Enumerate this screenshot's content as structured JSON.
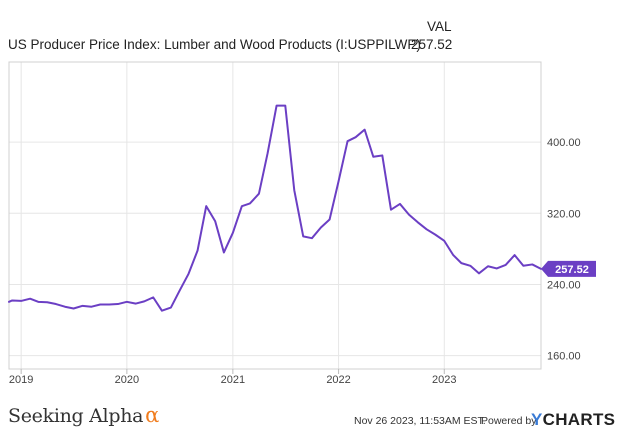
{
  "header": {
    "val_label": "VAL",
    "series_name": "US Producer Price Index: Lumber and Wood Products (I:USPPILWP)",
    "series_value": "257.52"
  },
  "footer": {
    "brand": "Seeking Alpha",
    "brand_mark": "α",
    "timestamp": "Nov 26 2023, 11:53AM EST.",
    "powered_by": "Powered by",
    "provider_y": "Y",
    "provider_rest": "CHARTS"
  },
  "colors": {
    "line": "#6b3fc4",
    "grid": "#e6e6e6",
    "axis_text": "#444444"
  },
  "chart_data": {
    "type": "line",
    "title": "",
    "xlabel": "",
    "ylabel": "",
    "ylim": [
      145,
      490
    ],
    "xlim": [
      "2018-11-20",
      "2023-12-01"
    ],
    "y_ticks": [
      160,
      240,
      320,
      400
    ],
    "y_tick_labels": [
      "160.00",
      "240.00",
      "320.00",
      "400.00"
    ],
    "x_ticks": [
      "2019-01-01",
      "2020-01-01",
      "2021-01-01",
      "2022-01-01",
      "2023-01-01"
    ],
    "x_tick_labels": [
      "2019",
      "2020",
      "2021",
      "2022",
      "2023"
    ],
    "last_value_label": "257.52",
    "grid": true,
    "legend_placement": "top",
    "series": [
      {
        "name": "US Producer Price Index: Lumber and Wood Products (I:USPPILWP)",
        "points": [
          [
            "2018-11-01",
            220.5
          ],
          [
            "2018-12-01",
            222.0
          ],
          [
            "2019-01-01",
            221.5
          ],
          [
            "2019-02-01",
            224.0
          ],
          [
            "2019-03-01",
            220.5
          ],
          [
            "2019-04-01",
            220.0
          ],
          [
            "2019-05-01",
            218.0
          ],
          [
            "2019-06-01",
            215.0
          ],
          [
            "2019-07-01",
            213.0
          ],
          [
            "2019-08-01",
            216.0
          ],
          [
            "2019-09-01",
            215.0
          ],
          [
            "2019-10-01",
            217.5
          ],
          [
            "2019-11-01",
            217.5
          ],
          [
            "2019-12-01",
            218.0
          ],
          [
            "2020-01-01",
            220.5
          ],
          [
            "2020-02-01",
            218.5
          ],
          [
            "2020-03-01",
            221.0
          ],
          [
            "2020-04-01",
            225.5
          ],
          [
            "2020-05-01",
            210.5
          ],
          [
            "2020-06-01",
            214.0
          ],
          [
            "2020-07-01",
            233.0
          ],
          [
            "2020-08-01",
            252.0
          ],
          [
            "2020-09-01",
            278.0
          ],
          [
            "2020-10-01",
            328.0
          ],
          [
            "2020-11-01",
            311.0
          ],
          [
            "2020-12-01",
            276.0
          ],
          [
            "2021-01-01",
            298.0
          ],
          [
            "2021-02-01",
            328.0
          ],
          [
            "2021-03-01",
            331.0
          ],
          [
            "2021-04-01",
            342.0
          ],
          [
            "2021-05-01",
            387.5
          ],
          [
            "2021-06-01",
            441.0
          ],
          [
            "2021-07-01",
            441.0
          ],
          [
            "2021-08-01",
            346.0
          ],
          [
            "2021-09-01",
            294.0
          ],
          [
            "2021-10-01",
            292.0
          ],
          [
            "2021-11-01",
            304.0
          ],
          [
            "2021-12-01",
            313.0
          ],
          [
            "2022-01-01",
            356.0
          ],
          [
            "2022-02-01",
            401.0
          ],
          [
            "2022-03-01",
            405.5
          ],
          [
            "2022-04-01",
            414.0
          ],
          [
            "2022-05-01",
            383.5
          ],
          [
            "2022-06-01",
            385.0
          ],
          [
            "2022-07-01",
            324.0
          ],
          [
            "2022-08-01",
            330.5
          ],
          [
            "2022-09-01",
            318.5
          ],
          [
            "2022-10-01",
            310.0
          ],
          [
            "2022-11-01",
            302.0
          ],
          [
            "2022-12-01",
            296.0
          ],
          [
            "2023-01-01",
            289.0
          ],
          [
            "2023-02-01",
            273.0
          ],
          [
            "2023-03-01",
            264.0
          ],
          [
            "2023-04-01",
            261.0
          ],
          [
            "2023-05-01",
            252.5
          ],
          [
            "2023-06-01",
            260.5
          ],
          [
            "2023-07-01",
            258.0
          ],
          [
            "2023-08-01",
            262.0
          ],
          [
            "2023-09-01",
            273.0
          ],
          [
            "2023-10-01",
            261.0
          ],
          [
            "2023-11-01",
            262.5
          ],
          [
            "2023-12-01",
            257.52
          ]
        ]
      }
    ]
  }
}
